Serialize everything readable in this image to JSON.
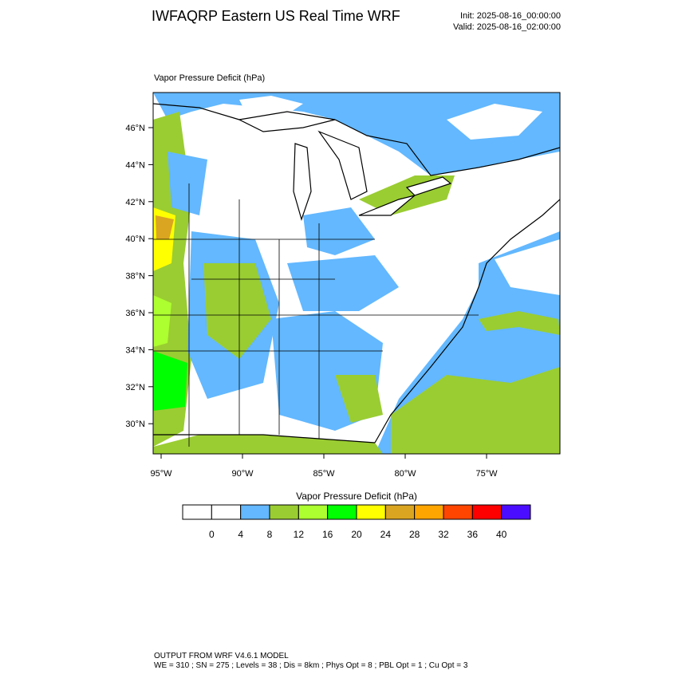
{
  "header": {
    "title": "IWFAQRP Eastern US Real Time WRF",
    "init": "Init: 2025-08-16_00:00:00",
    "valid": "Valid: 2025-08-16_02:00:00"
  },
  "map": {
    "label": "Vapor Pressure Deficit   (hPa)",
    "lat_labels": [
      "46°N",
      "44°N",
      "42°N",
      "40°N",
      "38°N",
      "36°N",
      "34°N",
      "32°N",
      "30°N"
    ],
    "lon_labels": [
      "95°W",
      "90°W",
      "85°W",
      "80°W",
      "75°W"
    ]
  },
  "colorbar": {
    "title": "Vapor Pressure Deficit  (hPa)",
    "colors": [
      "#ffffff",
      "#ffffff",
      "#63b8ff",
      "#9acd32",
      "#adff2f",
      "#00ff00",
      "#ffff00",
      "#daa520",
      "#ffa500",
      "#ff4500",
      "#ff0000",
      "#4b0dff"
    ],
    "labels": [
      0,
      4,
      8,
      12,
      16,
      20,
      24,
      28,
      32,
      36,
      40
    ]
  },
  "footer": {
    "line1": "OUTPUT FROM WRF V4.6.1 MODEL",
    "line2": "WE = 310 ; SN = 275 ; Levels = 38 ; Dis = 8km ; Phys Opt = 8 ; PBL Opt = 1 ; Cu Opt = 3"
  }
}
